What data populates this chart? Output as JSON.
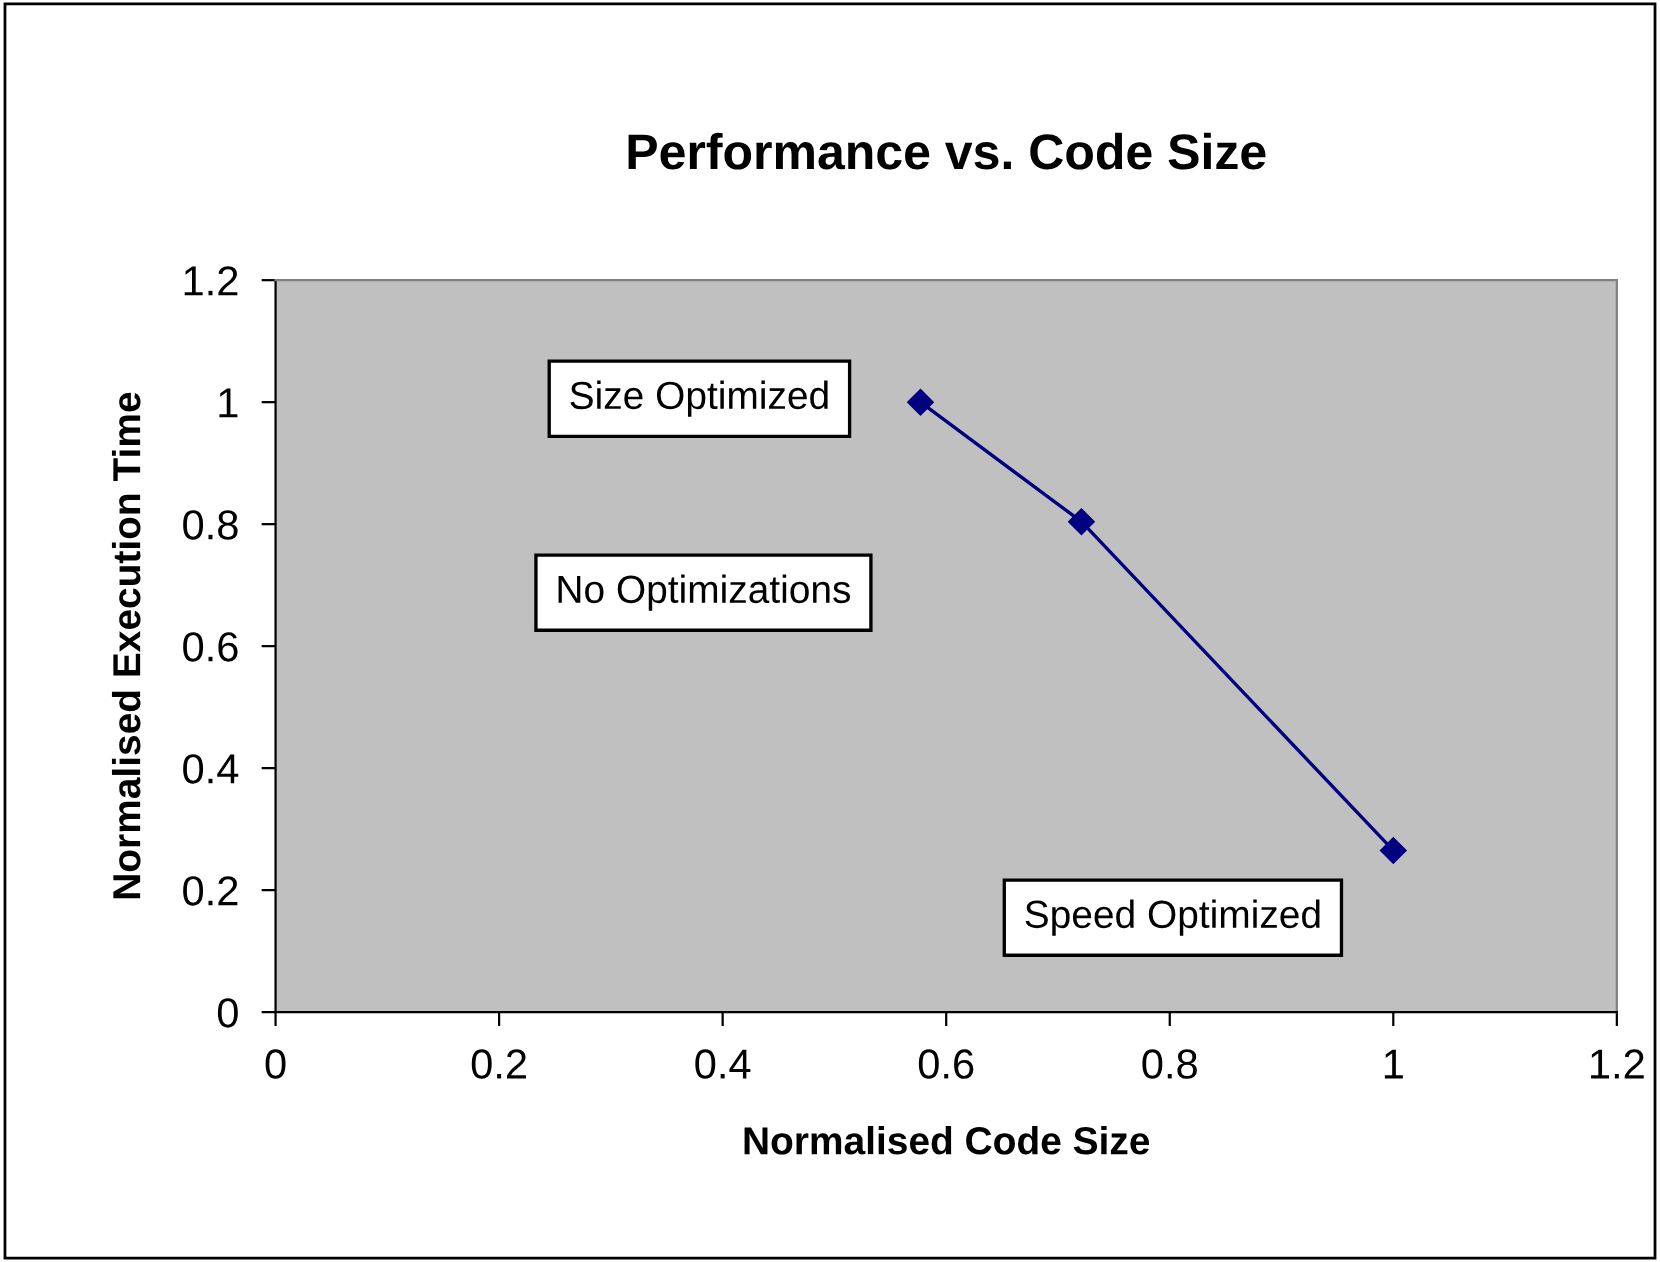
{
  "chart_data": {
    "type": "line",
    "title": "Performance vs. Code Size",
    "xlabel": "Normalised Code Size",
    "ylabel": "Normalised Execution Time",
    "x": [
      0.577,
      0.721,
      1.0
    ],
    "series": [
      {
        "color": "#000080",
        "values": [
          1.0,
          0.804,
          0.265
        ]
      }
    ],
    "xlim": [
      0,
      1.2
    ],
    "ylim": [
      0,
      1.2
    ],
    "xticks": [
      0,
      0.2,
      0.4,
      0.6,
      0.8,
      1,
      1.2
    ],
    "yticks": [
      0,
      0.2,
      0.4,
      0.6,
      0.8,
      1,
      1.2
    ],
    "marker": "diamond",
    "line_style": "solid",
    "grid": false,
    "legend": false,
    "annotations": [
      "Size Optimized",
      "No Optimizations",
      "Speed Optimized"
    ]
  }
}
